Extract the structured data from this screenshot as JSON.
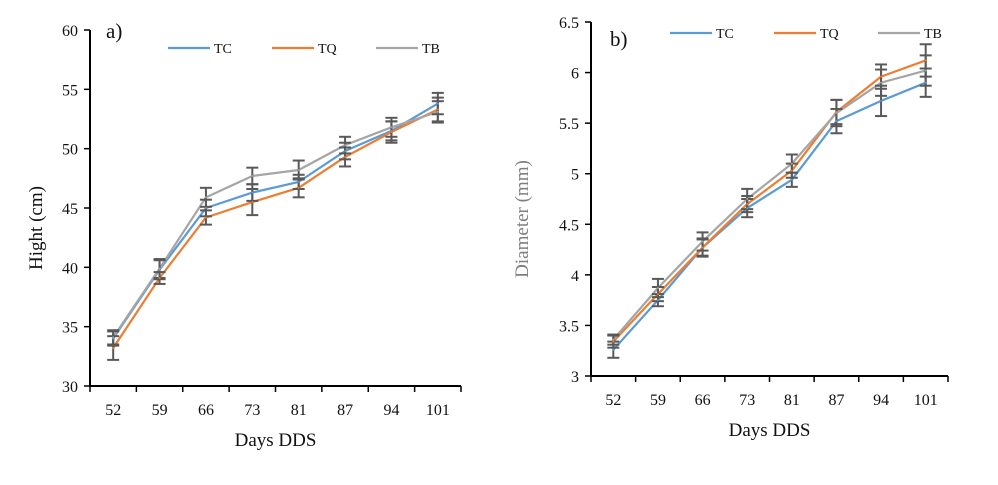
{
  "chart_data": [
    {
      "type": "line",
      "panel_label": "a)",
      "title": "",
      "xlabel": "Days DDS",
      "ylabel": "Hight (cm)",
      "ylabel_color": "#111111",
      "categories": [
        "52",
        "59",
        "66",
        "73",
        "81",
        "87",
        "94",
        "101"
      ],
      "ylim": [
        30,
        60
      ],
      "yticks": [
        30,
        35,
        40,
        45,
        50,
        55,
        60
      ],
      "grid": false,
      "legend_position": "top-center",
      "error_bars": true,
      "series": [
        {
          "name": "TC",
          "color": "#5B9BD5",
          "values": [
            34.0,
            39.8,
            45.0,
            46.3,
            47.2,
            49.8,
            51.5,
            53.8
          ],
          "error": [
            0.6,
            0.8,
            0.7,
            0.7,
            0.6,
            0.7,
            0.8,
            0.9
          ]
        },
        {
          "name": "TQ",
          "color": "#ED7D31",
          "values": [
            33.2,
            39.1,
            44.2,
            45.5,
            46.7,
            49.3,
            51.4,
            53.3
          ],
          "error": [
            1.0,
            0.5,
            0.6,
            1.1,
            0.8,
            0.8,
            0.9,
            1.0
          ]
        },
        {
          "name": "TB",
          "color": "#A5A5A5",
          "values": [
            34.1,
            39.9,
            45.9,
            47.7,
            48.2,
            50.3,
            51.8,
            53.1
          ],
          "error": [
            0.6,
            0.8,
            0.8,
            0.7,
            0.8,
            0.7,
            0.8,
            0.9
          ]
        }
      ],
      "error_color": "#595959"
    },
    {
      "type": "line",
      "panel_label": "b)",
      "title": "",
      "xlabel": "Days DDS",
      "ylabel": "Diameter (mm)",
      "ylabel_color": "#7F7F7F",
      "categories": [
        "52",
        "59",
        "66",
        "73",
        "81",
        "87",
        "94",
        "101"
      ],
      "ylim": [
        3,
        6.5
      ],
      "yticks": [
        "3",
        "3.5",
        "4",
        "4.5",
        "5",
        "5.5",
        "6",
        "6.5"
      ],
      "grid": false,
      "legend_position": "top-center",
      "error_bars": true,
      "series": [
        {
          "name": "TC",
          "color": "#5B9BD5",
          "values": [
            3.26,
            3.75,
            4.27,
            4.66,
            4.94,
            5.52,
            5.72,
            5.9
          ],
          "error": [
            0.08,
            0.06,
            0.09,
            0.09,
            0.07,
            0.12,
            0.15,
            0.14
          ]
        },
        {
          "name": "TQ",
          "color": "#ED7D31",
          "values": [
            3.34,
            3.81,
            4.27,
            4.7,
            5.03,
            5.61,
            5.96,
            6.12
          ],
          "error": [
            0.06,
            0.07,
            0.08,
            0.08,
            0.07,
            0.12,
            0.12,
            0.16
          ]
        },
        {
          "name": "TB",
          "color": "#A5A5A5",
          "values": [
            3.36,
            3.87,
            4.33,
            4.75,
            5.1,
            5.6,
            5.9,
            6.02
          ],
          "error": [
            0.05,
            0.09,
            0.09,
            0.1,
            0.09,
            0.13,
            0.13,
            0.15
          ]
        }
      ],
      "error_color": "#595959"
    }
  ]
}
